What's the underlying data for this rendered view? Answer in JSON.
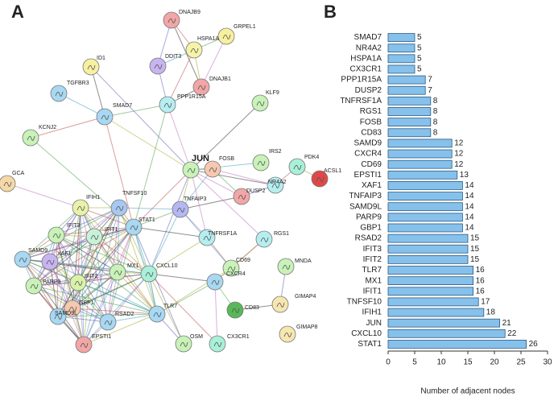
{
  "panel_labels": [
    "A",
    "B"
  ],
  "network": {
    "nodes": [
      "DNAJB9",
      "GRPEL1",
      "HSPA1A",
      "ID1",
      "DDIT3",
      "DNAJB1",
      "TGFBR3",
      "PPP1R15A",
      "KLF9",
      "SMAD7",
      "KCNJ2",
      "IRS2",
      "PDK4",
      "JUN",
      "FOSB",
      "ACSL1",
      "GCA",
      "NR4A2",
      "DUSP2",
      "IFIH1",
      "TNFSF10",
      "TNFAIP3",
      "STAT1",
      "IFIT3",
      "IFIT1",
      "TNFRSF1A",
      "RGS1",
      "SAMD9",
      "XAF1",
      "CD69",
      "MX1",
      "CXCL10",
      "MNDA",
      "IFIT2",
      "PARP9",
      "CXCR4",
      "GIMAP4",
      "GBP1",
      "TLR7",
      "CD83",
      "SAMD9L",
      "RSAD2",
      "GIMAP8",
      "EPSTI1",
      "OSM",
      "CX3CR1"
    ]
  },
  "chart_data": {
    "type": "barh",
    "x_label": "Number of adjacent nodes",
    "categories": [
      "SMAD7",
      "NR4A2",
      "HSPA1A",
      "CX3CR1",
      "PPP1R15A",
      "DUSP2",
      "TNFRSF1A",
      "RGS1",
      "FOSB",
      "CD83",
      "SAMD9",
      "CXCR4",
      "CD69",
      "EPSTI1",
      "XAF1",
      "TNFAIP3",
      "SAMD9L",
      "PARP9",
      "GBP1",
      "RSAD2",
      "IFIT3",
      "IFIT2",
      "TLR7",
      "MX1",
      "IFIT1",
      "TNFSF10",
      "IFIH1",
      "JUN",
      "CXCL10",
      "STAT1"
    ],
    "values": [
      5,
      5,
      5,
      5,
      7,
      7,
      8,
      8,
      8,
      8,
      12,
      12,
      12,
      13,
      14,
      14,
      14,
      14,
      14,
      15,
      15,
      15,
      16,
      16,
      16,
      17,
      18,
      21,
      22,
      26
    ],
    "color": "#86c1ec",
    "xlim": [
      0,
      30
    ],
    "xticks": [
      0,
      5,
      10,
      15,
      20,
      25,
      30
    ]
  }
}
